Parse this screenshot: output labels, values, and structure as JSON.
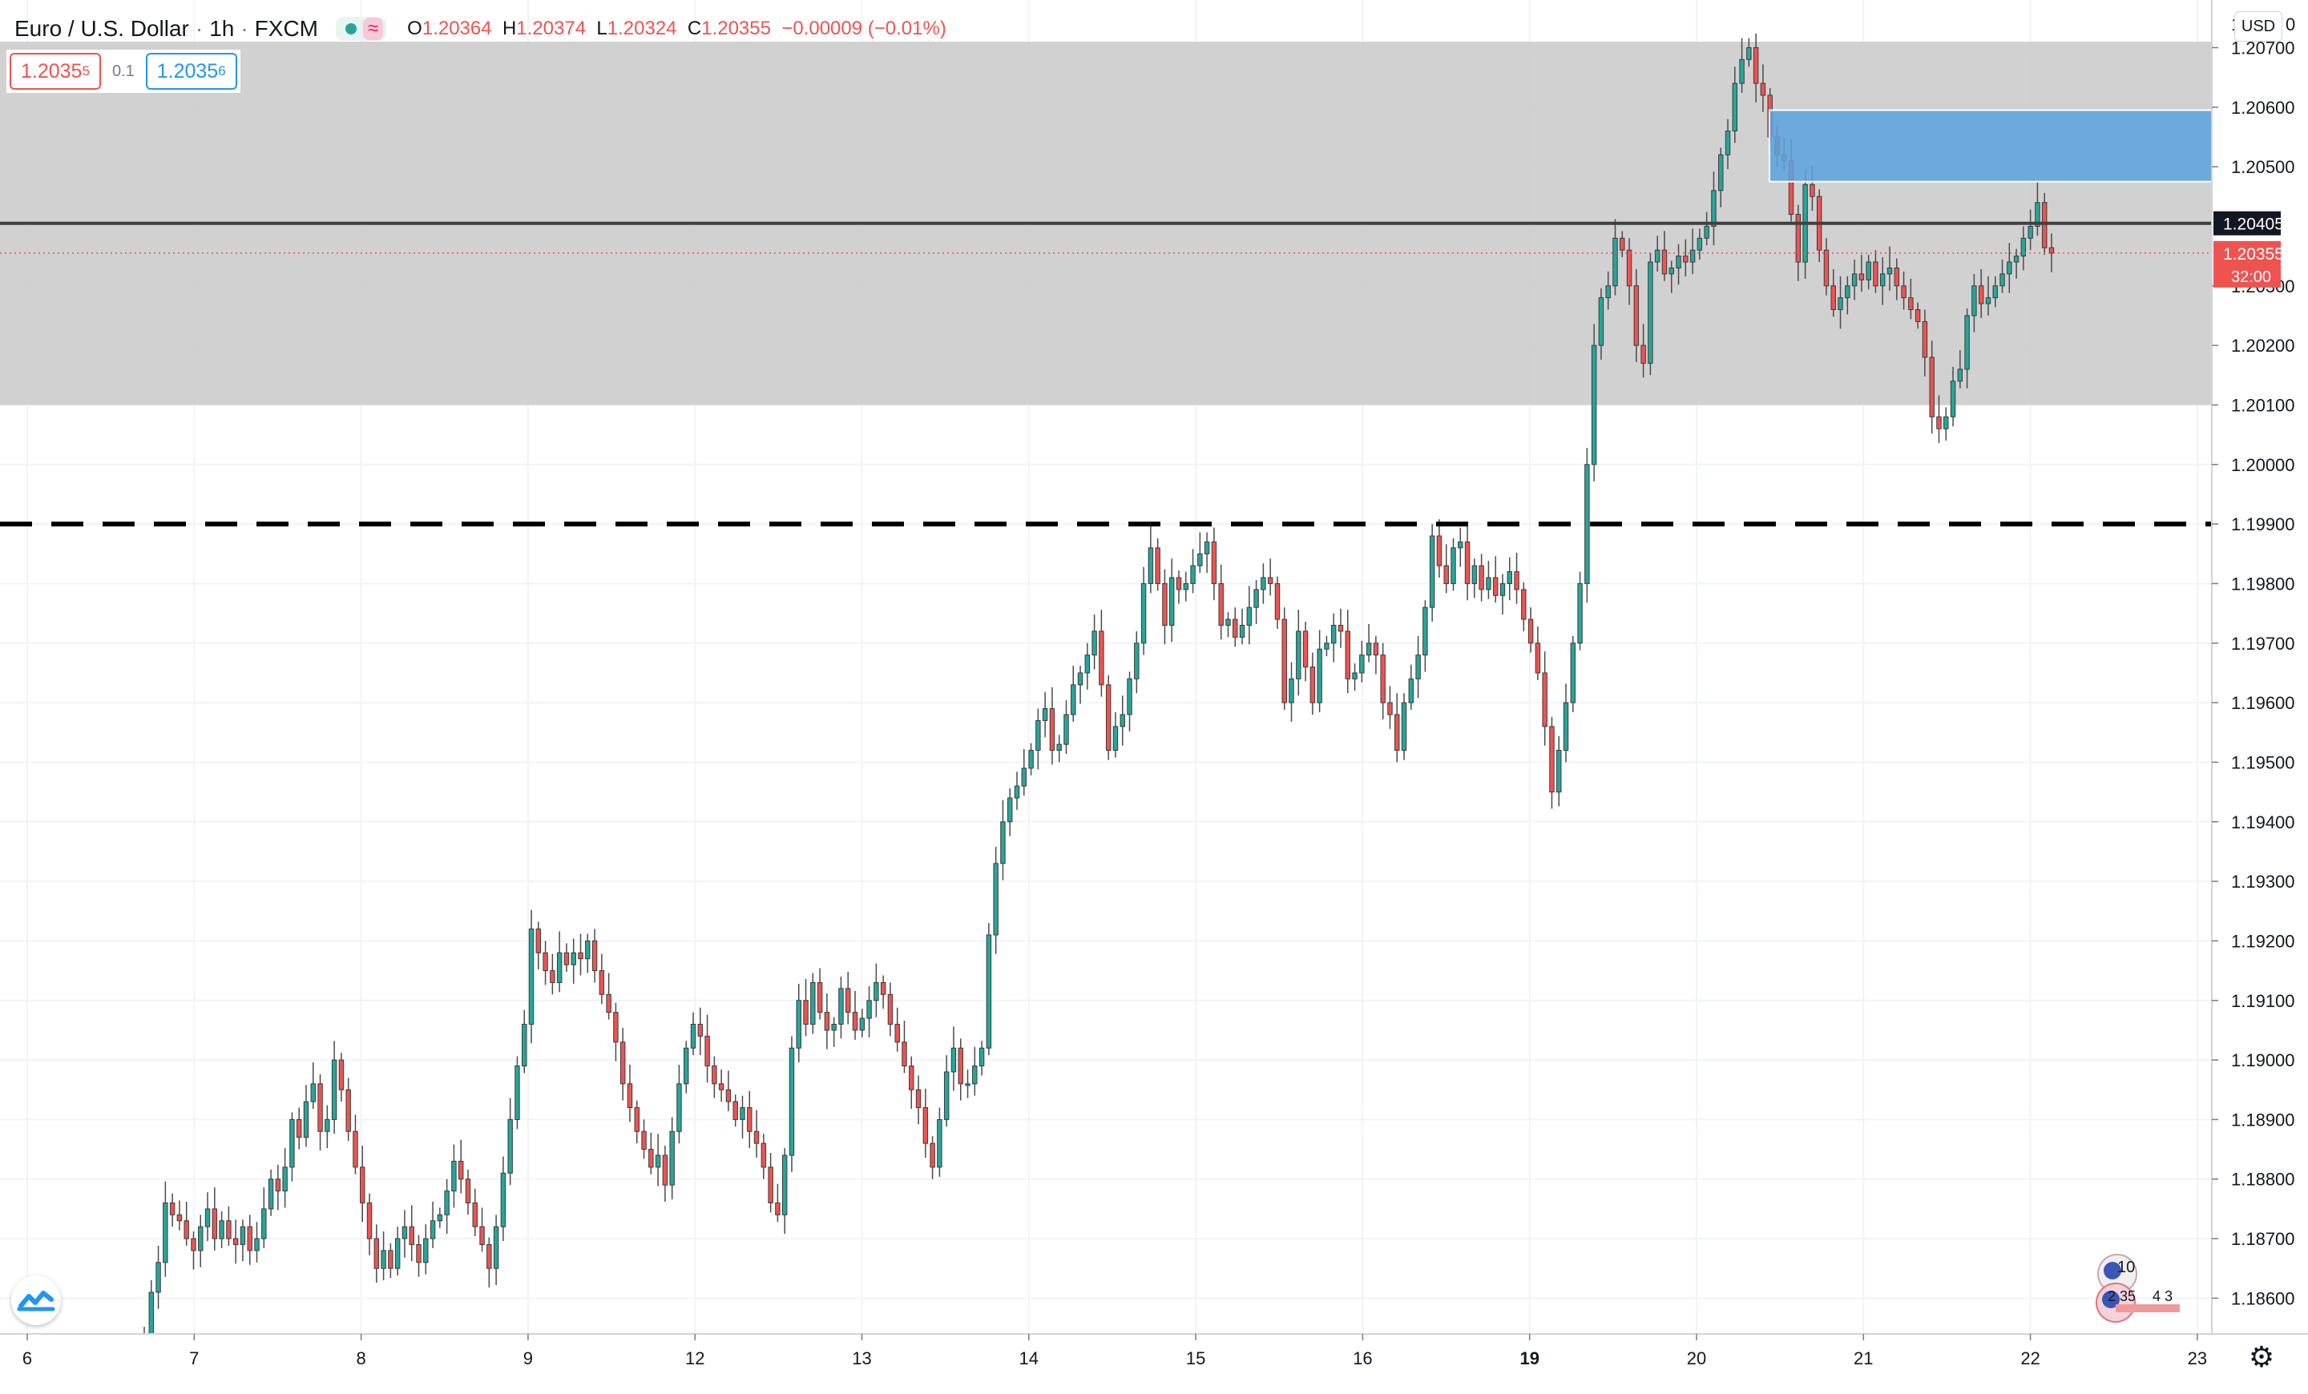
{
  "header": {
    "symbol": "Euro / U.S. Dollar",
    "sep": "·",
    "interval": "1h",
    "exchange": "FXCM",
    "wave_icon": "≈",
    "ohlc": {
      "o_label": "O",
      "o": "1.20364",
      "h_label": "H",
      "h": "1.20374",
      "l_label": "L",
      "l": "1.20324",
      "c_label": "C",
      "c": "1.20355",
      "change": "−0.00009 (−0.01%)"
    }
  },
  "quotes": {
    "sell_main": "1.2035",
    "sell_sup": "5",
    "spread": "0.1",
    "buy_main": "1.2035",
    "buy_sup": "6"
  },
  "currency_button": "USD",
  "axis_top_label": "1",
  "axis_top_suffix": "0",
  "price_axis": [
    "1.20700",
    "1.20600",
    "1.20500",
    "1.20300",
    "1.20200",
    "1.20100",
    "1.20000",
    "1.19900",
    "1.19800",
    "1.19700",
    "1.19600",
    "1.19500",
    "1.19400",
    "1.19300",
    "1.19200",
    "1.19100",
    "1.19000",
    "1.18900",
    "1.18800",
    "1.18700",
    "1.18600"
  ],
  "time_axis": [
    "6",
    "7",
    "8",
    "9",
    "12",
    "13",
    "14",
    "15",
    "16",
    "19",
    "20",
    "21",
    "22",
    "23"
  ],
  "markers": {
    "horizontal_line": "1.20405",
    "last_price": "1.20355",
    "countdown": "32:00"
  },
  "events": {
    "a": "10",
    "b": "2 35",
    "c": "4 3"
  },
  "colors": {
    "up": "#26a69a",
    "down": "#ef5350",
    "zone": "#c9c9c9",
    "blue_zone": "#5ba3e0",
    "line": "#404040",
    "last_price": "#ef5350"
  },
  "icons": {
    "logo": "tradingview-logo-icon",
    "settings": "gear-icon"
  },
  "chart_data": {
    "type": "candlestick",
    "title": "Euro / U.S. Dollar",
    "interval": "1h",
    "y_range": [
      1.1854,
      1.2078
    ],
    "x_labels": [
      "6",
      "7",
      "8",
      "9",
      "12",
      "13",
      "14",
      "15",
      "16",
      "19",
      "20",
      "21",
      "22",
      "23"
    ],
    "zones": [
      {
        "kind": "gray_zone",
        "from": 1.201,
        "to": 1.2071
      },
      {
        "kind": "blue_zone",
        "from": 1.20475,
        "to": 1.20595
      },
      {
        "kind": "solid_line",
        "price": 1.20405
      },
      {
        "kind": "dashed_line",
        "price": 1.199
      }
    ],
    "series_close": [
      1.1854,
      1.1861,
      1.1866,
      1.1876,
      1.1874,
      1.1873,
      1.187,
      1.1868,
      1.1872,
      1.1875,
      1.187,
      1.1873,
      1.187,
      1.1869,
      1.1872,
      1.1868,
      1.187,
      1.1875,
      1.188,
      1.1878,
      1.1882,
      1.189,
      1.1887,
      1.1893,
      1.1896,
      1.1888,
      1.189,
      1.19,
      1.1895,
      1.1888,
      1.1882,
      1.1876,
      1.187,
      1.1865,
      1.1868,
      1.1865,
      1.187,
      1.1872,
      1.1869,
      1.1866,
      1.187,
      1.1873,
      1.1874,
      1.1878,
      1.1883,
      1.188,
      1.1876,
      1.1872,
      1.1869,
      1.1865,
      1.1872,
      1.1881,
      1.189,
      1.1899,
      1.1906,
      1.1922,
      1.1918,
      1.1915,
      1.1913,
      1.1918,
      1.1916,
      1.1918,
      1.1917,
      1.192,
      1.1915,
      1.1911,
      1.1908,
      1.1903,
      1.1896,
      1.1892,
      1.1888,
      1.1885,
      1.1882,
      1.1884,
      1.1879,
      1.1888,
      1.1896,
      1.1902,
      1.1906,
      1.1904,
      1.1899,
      1.1896,
      1.1895,
      1.1893,
      1.189,
      1.1892,
      1.1888,
      1.1886,
      1.1882,
      1.1876,
      1.1874,
      1.1884,
      1.1902,
      1.191,
      1.1906,
      1.1913,
      1.1908,
      1.1905,
      1.1906,
      1.1912,
      1.1908,
      1.1905,
      1.1907,
      1.191,
      1.1913,
      1.1911,
      1.1906,
      1.1903,
      1.1899,
      1.1895,
      1.1892,
      1.1886,
      1.1882,
      1.189,
      1.1898,
      1.1902,
      1.1896,
      1.1896,
      1.1899,
      1.1902,
      1.1921,
      1.1933,
      1.194,
      1.1944,
      1.1946,
      1.1949,
      1.1952,
      1.1957,
      1.1959,
      1.1952,
      1.1953,
      1.1958,
      1.1963,
      1.1965,
      1.1968,
      1.1972,
      1.1963,
      1.1952,
      1.1956,
      1.1958,
      1.1964,
      1.197,
      1.198,
      1.1986,
      1.198,
      1.1973,
      1.1981,
      1.1979,
      1.198,
      1.1983,
      1.1985,
      1.1987,
      1.198,
      1.1973,
      1.1974,
      1.1971,
      1.1973,
      1.1976,
      1.1979,
      1.1981,
      1.198,
      1.1974,
      1.196,
      1.1964,
      1.1972,
      1.1966,
      1.196,
      1.1969,
      1.197,
      1.1973,
      1.1972,
      1.1964,
      1.1965,
      1.1968,
      1.197,
      1.1968,
      1.196,
      1.1958,
      1.1952,
      1.196,
      1.1964,
      1.1968,
      1.1976,
      1.1988,
      1.1983,
      1.198,
      1.1986,
      1.1987,
      1.198,
      1.1983,
      1.1979,
      1.1981,
      1.1978,
      1.198,
      1.1982,
      1.1979,
      1.1974,
      1.197,
      1.1965,
      1.1956,
      1.1945,
      1.1952,
      1.196,
      1.197,
      1.198,
      1.2,
      1.202,
      1.2028,
      1.203,
      1.2038,
      1.2036,
      1.203,
      1.202,
      1.2017,
      1.2034,
      1.2036,
      1.2032,
      1.2033,
      1.2035,
      1.2034,
      1.2036,
      1.2038,
      1.204,
      1.2046,
      1.2052,
      1.2056,
      1.2064,
      1.2068,
      1.207,
      1.2064,
      1.2062,
      1.2055,
      1.2052,
      1.2051,
      1.2042,
      1.2034,
      1.2047,
      1.2045,
      1.2036,
      1.203,
      1.2026,
      1.2028,
      1.203,
      1.2032,
      1.2031,
      1.2034,
      1.203,
      1.2032,
      1.2033,
      1.203,
      1.2028,
      1.2026,
      1.2024,
      1.2018,
      1.2008,
      1.2006,
      1.2008,
      1.2014,
      1.2016,
      1.2025,
      1.203,
      1.2027,
      1.2028,
      1.203,
      1.2032,
      1.2034,
      1.2035,
      1.2038,
      1.204,
      1.2044,
      1.20364,
      1.20355
    ]
  }
}
